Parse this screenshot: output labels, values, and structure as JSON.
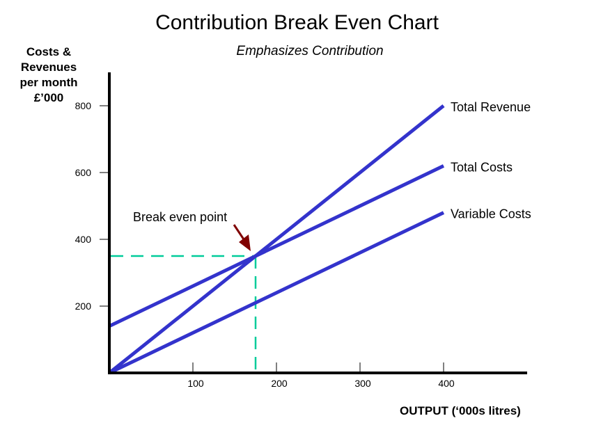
{
  "chart_data": {
    "type": "line",
    "title": "Contribution Break Even Chart",
    "subtitle": "Emphasizes Contribution",
    "xlabel": "OUTPUT (‘000s litres)",
    "ylabel": "Costs & Revenues per month £’000",
    "ylabel_lines": [
      "Costs &",
      "Revenues",
      "per month",
      "£’000"
    ],
    "xlim": [
      0,
      500
    ],
    "ylim": [
      0,
      900
    ],
    "x_ticks": [
      100,
      200,
      300,
      400
    ],
    "y_ticks": [
      200,
      400,
      600,
      800
    ],
    "grid": false,
    "legend_position": "inline-right-of-lines",
    "series": [
      {
        "name": "Total Revenue",
        "x": [
          0,
          400
        ],
        "values": [
          0,
          800
        ],
        "color": "#3333cc"
      },
      {
        "name": "Total Costs",
        "x": [
          0,
          400
        ],
        "values": [
          140,
          620
        ],
        "color": "#3333cc"
      },
      {
        "name": "Variable Costs",
        "x": [
          0,
          400
        ],
        "values": [
          0,
          480
        ],
        "color": "#3333cc"
      }
    ],
    "annotations": [
      {
        "text": "Break even point",
        "x": 175,
        "y": 350,
        "arrow_color": "#800000"
      }
    ],
    "reference_lines": {
      "break_even_x": 175,
      "break_even_y": 350,
      "color": "#00cc99",
      "style": "dashed"
    }
  }
}
